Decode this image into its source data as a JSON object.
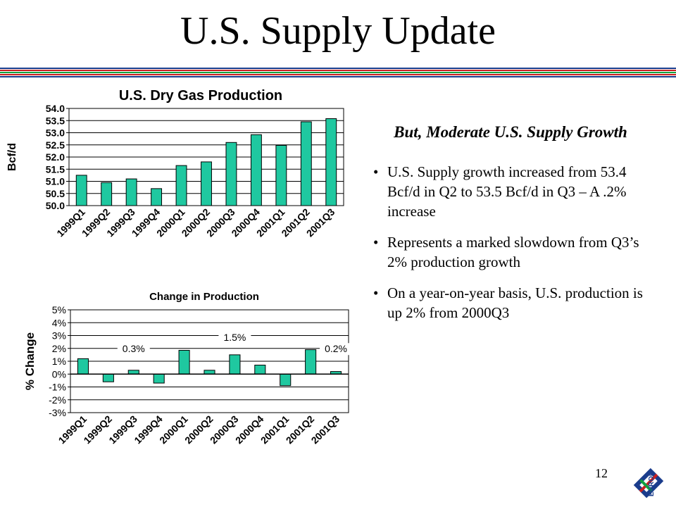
{
  "slide": {
    "title": "U.S. Supply Update",
    "subhead": "But, Moderate U.S. Supply Growth",
    "bullets": [
      "U.S. Supply growth increased from 53.4 Bcf/d in Q2 to 53.5 Bcf/d in Q3 – A .2% increase",
      "Represents a marked slowdown from Q3’s 2% production growth",
      "On a year-on-year basis, U.S. production is up 2% from 2000Q3"
    ],
    "page_number": "12",
    "logo_text": "ENRON"
  },
  "colors": {
    "bar": "#1fc8a0",
    "bar_stroke": "#000000",
    "rule_blue": "#1a3c8c",
    "rule_red": "#c82020",
    "rule_green": "#10a040"
  },
  "chart_data": [
    {
      "type": "bar",
      "title": "U.S. Dry Gas Production",
      "ylabel": "Bcf/d",
      "xlabel": "",
      "categories": [
        "1999Q1",
        "1999Q2",
        "1999Q3",
        "1999Q4",
        "2000Q1",
        "2000Q2",
        "2000Q3",
        "2000Q4",
        "2001Q1",
        "2001Q2",
        "2001Q3"
      ],
      "values": [
        51.25,
        50.95,
        51.1,
        50.7,
        51.65,
        51.8,
        52.6,
        52.92,
        52.48,
        53.45,
        53.58
      ],
      "ylim": [
        50.0,
        54.0
      ],
      "yticks": [
        50.0,
        50.5,
        51.0,
        51.5,
        52.0,
        52.5,
        53.0,
        53.5,
        54.0
      ],
      "ytick_labels": [
        "50.0",
        "50.5",
        "51.0",
        "51.5",
        "52.0",
        "52.5",
        "53.0",
        "53.5",
        "54.0"
      ],
      "grid": true
    },
    {
      "type": "bar",
      "title": "Change in Production",
      "ylabel": "% Change",
      "xlabel": "",
      "categories": [
        "1999Q1",
        "1999Q2",
        "1999Q3",
        "1999Q4",
        "2000Q1",
        "2000Q2",
        "2000Q3",
        "2000Q4",
        "2001Q1",
        "2001Q2",
        "2001Q3"
      ],
      "values": [
        1.2,
        -0.6,
        0.3,
        -0.7,
        1.85,
        0.3,
        1.5,
        0.7,
        -0.9,
        1.9,
        0.2
      ],
      "ylim": [
        -3,
        5
      ],
      "yticks": [
        -3,
        -2,
        -1,
        0,
        1,
        2,
        3,
        4,
        5
      ],
      "ytick_labels": [
        "-3%",
        "-2%",
        "-1%",
        "0%",
        "1%",
        "2%",
        "3%",
        "4%",
        "5%"
      ],
      "grid": true,
      "annotations": [
        {
          "category": "1999Q3",
          "text": "0.3%"
        },
        {
          "category": "2000Q3",
          "text": "1.5%"
        },
        {
          "category": "2001Q3",
          "text": "0.2%"
        }
      ]
    }
  ]
}
